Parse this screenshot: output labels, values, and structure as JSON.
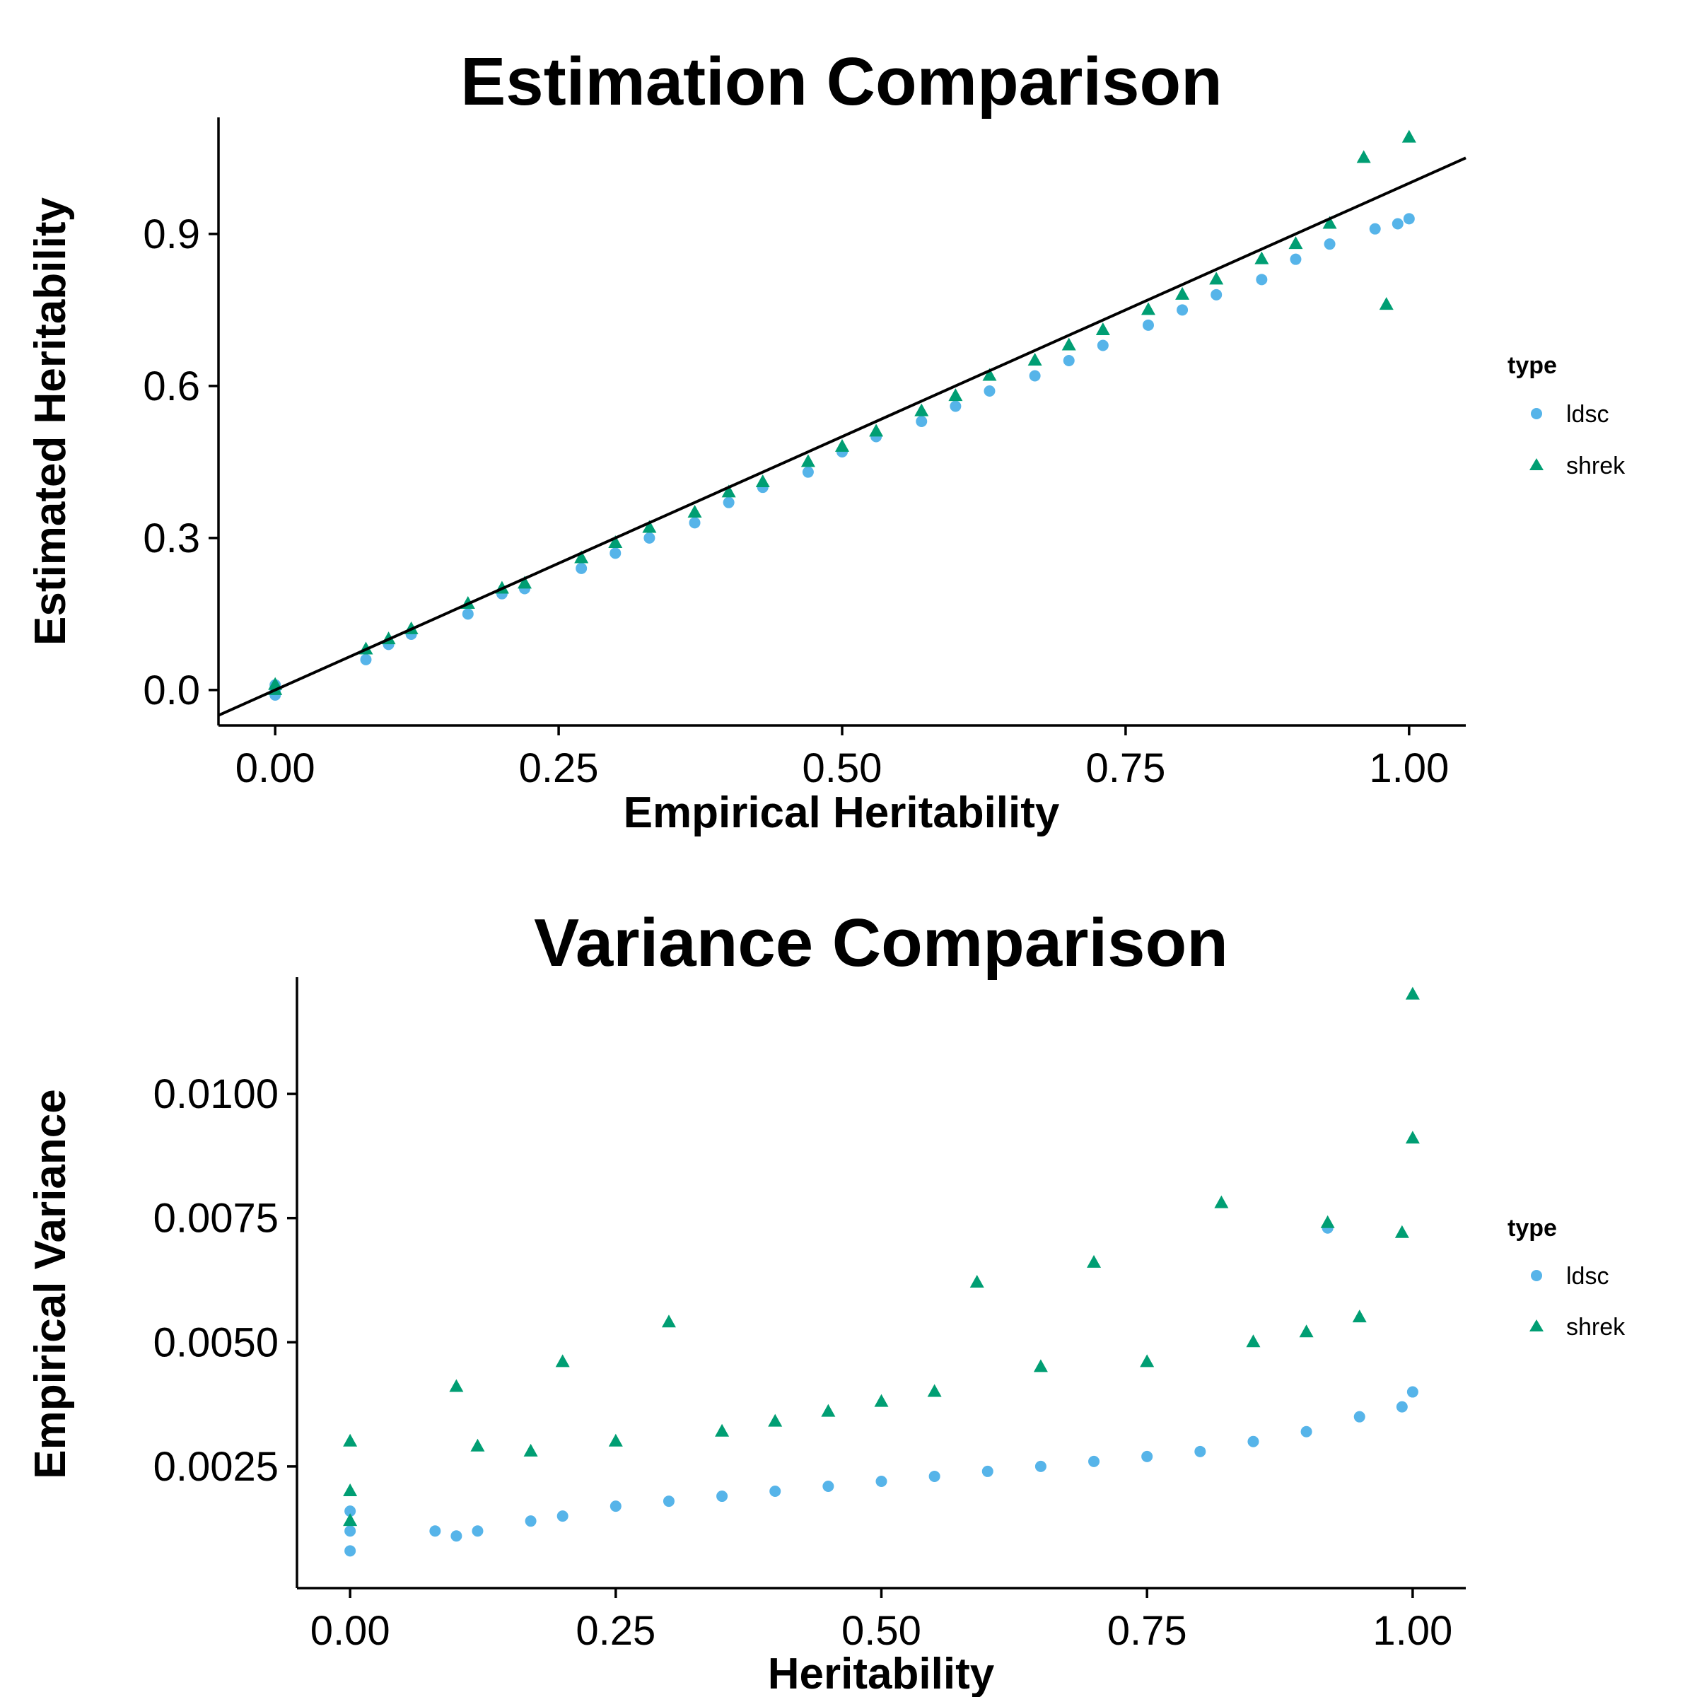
{
  "colors": {
    "ldsc": "#56B4E9",
    "shrek": "#009E73",
    "ref_line": "#000000"
  },
  "chart_data": [
    {
      "type": "scatter",
      "title": "Estimation Comparison",
      "xlabel": "Empirical Heritability",
      "ylabel": "Estimated Heritability",
      "xlim": [
        -0.05,
        1.05
      ],
      "ylim": [
        -0.07,
        1.13
      ],
      "xticks": [
        0,
        0.25,
        0.5,
        0.75,
        1
      ],
      "xtick_labels": [
        "0.00",
        "0.25",
        "0.50",
        "0.75",
        "1.00"
      ],
      "yticks": [
        0,
        0.3,
        0.6,
        0.9
      ],
      "ytick_labels": [
        "0.0",
        "0.3",
        "0.6",
        "0.9"
      ],
      "grid": false,
      "reference_line": {
        "intercept": 0,
        "slope": 1,
        "label": "y = x"
      },
      "legend": {
        "title": "type",
        "position": "right",
        "entries": [
          {
            "name": "ldsc",
            "marker": "circle"
          },
          {
            "name": "shrek",
            "marker": "triangle"
          }
        ]
      },
      "series": [
        {
          "name": "ldsc",
          "marker": "circle",
          "x": [
            0.0,
            0.0,
            0.0,
            0.08,
            0.1,
            0.12,
            0.17,
            0.2,
            0.22,
            0.27,
            0.3,
            0.33,
            0.37,
            0.4,
            0.43,
            0.47,
            0.5,
            0.53,
            0.57,
            0.6,
            0.63,
            0.67,
            0.7,
            0.73,
            0.77,
            0.8,
            0.83,
            0.87,
            0.9,
            0.93,
            0.97,
            0.99,
            1.0
          ],
          "y": [
            0.0,
            -0.01,
            0.01,
            0.06,
            0.09,
            0.11,
            0.15,
            0.19,
            0.2,
            0.24,
            0.27,
            0.3,
            0.33,
            0.37,
            0.4,
            0.43,
            0.47,
            0.5,
            0.53,
            0.56,
            0.59,
            0.62,
            0.65,
            0.68,
            0.72,
            0.75,
            0.78,
            0.81,
            0.85,
            0.88,
            0.91,
            0.92,
            0.93
          ]
        },
        {
          "name": "shrek",
          "marker": "triangle",
          "x": [
            0.0,
            0.0,
            0.08,
            0.1,
            0.12,
            0.17,
            0.2,
            0.22,
            0.27,
            0.3,
            0.33,
            0.37,
            0.4,
            0.43,
            0.47,
            0.5,
            0.53,
            0.57,
            0.6,
            0.63,
            0.67,
            0.7,
            0.73,
            0.77,
            0.8,
            0.83,
            0.87,
            0.9,
            0.93,
            0.96,
            0.98,
            1.0
          ],
          "y": [
            0.0,
            0.01,
            0.08,
            0.1,
            0.12,
            0.17,
            0.2,
            0.21,
            0.26,
            0.29,
            0.32,
            0.35,
            0.39,
            0.41,
            0.45,
            0.48,
            0.51,
            0.55,
            0.58,
            0.62,
            0.65,
            0.68,
            0.71,
            0.75,
            0.78,
            0.81,
            0.85,
            0.88,
            0.92,
            1.05,
            0.76,
            1.09
          ]
        }
      ]
    },
    {
      "type": "scatter",
      "title": "Variance Comparison",
      "xlabel": "Heritability",
      "ylabel": "Empirical Variance",
      "xlim": [
        -0.05,
        1.05
      ],
      "ylim": [
        5e-05,
        0.01235
      ],
      "xticks": [
        0,
        0.25,
        0.5,
        0.75,
        1
      ],
      "xtick_labels": [
        "0.00",
        "0.25",
        "0.50",
        "0.75",
        "1.00"
      ],
      "yticks": [
        0.0025,
        0.005,
        0.0075,
        0.01
      ],
      "ytick_labels": [
        "0.0025",
        "0.0050",
        "0.0075",
        "0.0100"
      ],
      "grid": false,
      "legend": {
        "title": "type",
        "position": "right",
        "entries": [
          {
            "name": "ldsc",
            "marker": "circle"
          },
          {
            "name": "shrek",
            "marker": "triangle"
          }
        ]
      },
      "series": [
        {
          "name": "ldsc",
          "marker": "circle",
          "x": [
            0.0,
            0.0,
            0.0,
            0.08,
            0.1,
            0.12,
            0.17,
            0.2,
            0.25,
            0.3,
            0.35,
            0.4,
            0.45,
            0.5,
            0.55,
            0.6,
            0.65,
            0.7,
            0.75,
            0.8,
            0.85,
            0.9,
            0.92,
            0.95,
            0.99,
            1.0
          ],
          "y": [
            0.0008,
            0.0012,
            0.0016,
            0.0012,
            0.0011,
            0.0012,
            0.0014,
            0.0015,
            0.0017,
            0.0018,
            0.0019,
            0.002,
            0.0021,
            0.0022,
            0.0023,
            0.0024,
            0.0025,
            0.0026,
            0.0027,
            0.0028,
            0.003,
            0.0032,
            0.0073,
            0.0035,
            0.0037,
            0.004
          ]
        },
        {
          "name": "shrek",
          "marker": "triangle",
          "x": [
            0.0,
            0.0,
            0.0,
            0.1,
            0.12,
            0.17,
            0.2,
            0.25,
            0.3,
            0.35,
            0.4,
            0.45,
            0.5,
            0.55,
            0.59,
            0.65,
            0.7,
            0.75,
            0.82,
            0.85,
            0.9,
            0.92,
            0.95,
            0.99,
            1.0,
            1.0
          ],
          "y": [
            0.0014,
            0.002,
            0.003,
            0.0041,
            0.0029,
            0.0028,
            0.0046,
            0.003,
            0.0054,
            0.0032,
            0.0034,
            0.0036,
            0.0038,
            0.004,
            0.0062,
            0.0045,
            0.0066,
            0.0046,
            0.0078,
            0.005,
            0.0052,
            0.0074,
            0.0055,
            0.0072,
            0.0091,
            0.012
          ]
        }
      ]
    }
  ]
}
